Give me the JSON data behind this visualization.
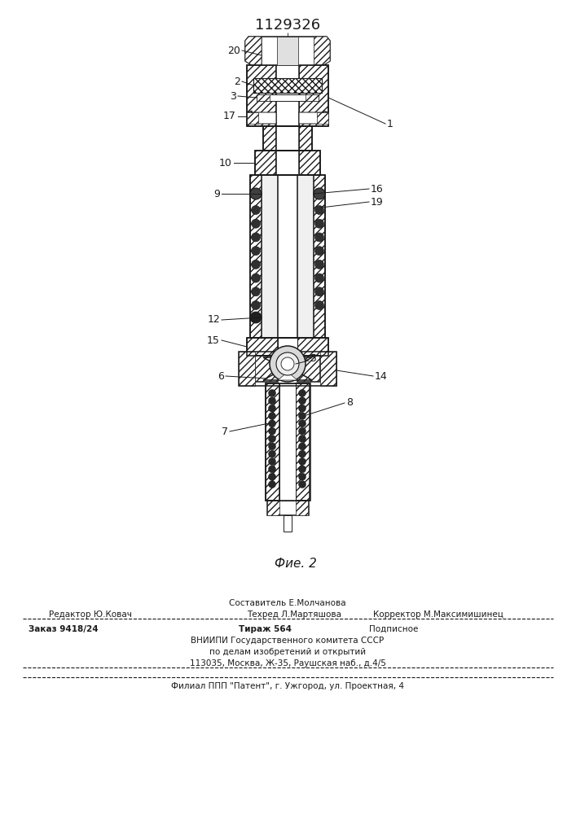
{
  "patent_number": "1129326",
  "figure_label": "Фие. 2",
  "bg_color": "#ffffff",
  "line_color": "#1a1a1a",
  "footer": {
    "line1_center": "Составитель Е.Молчанова",
    "line2_left": "Редактор Ю.Ковач",
    "line2_center": "Техред Л.Мартяшова",
    "line2_right": "Корректор М.Максимишинец",
    "line3_left": "Заказ 9418/24",
    "line3_center": "Тираж 564",
    "line3_right": "Подписное",
    "line4": "ВНИИПИ Государственного комитета СССР",
    "line5": "по делам изобретений и открытий",
    "line6": "113035, Москва, Ж-35, Раушская наб., д.4/5",
    "line7": "Филиал ППП \"Патент\", г. Ужгород, ул. Проектная, 4"
  }
}
